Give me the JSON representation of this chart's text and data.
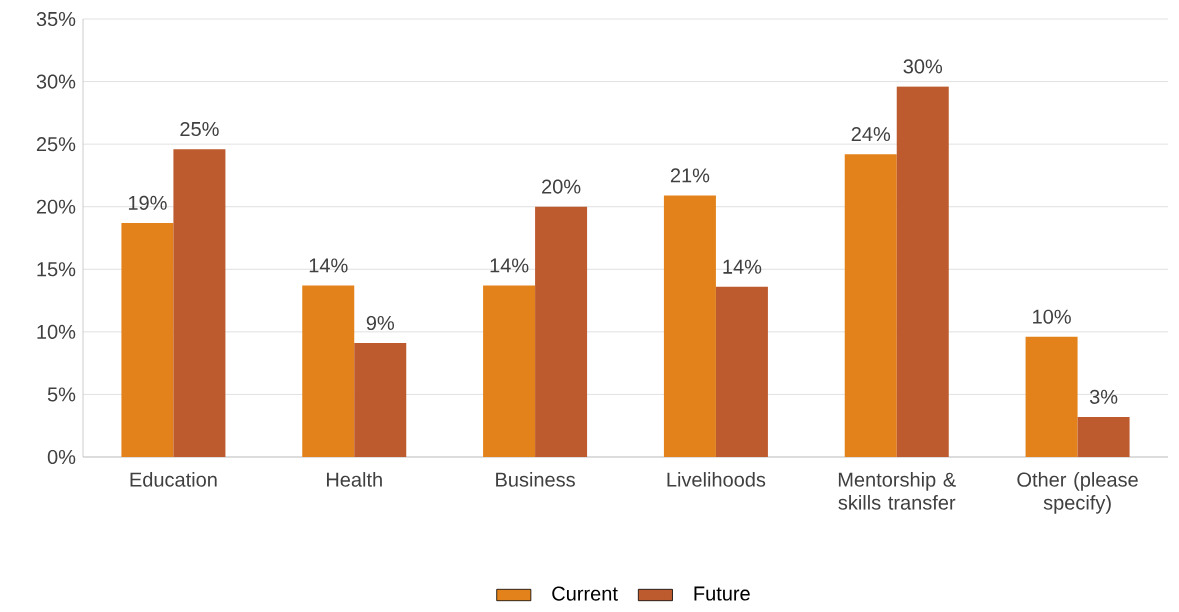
{
  "chart_data": {
    "type": "bar",
    "categories": [
      "Education",
      "Health",
      "Business",
      "Livelihoods",
      "Mentorship & skills transfer",
      "Other (please specify)"
    ],
    "series": [
      {
        "name": "Current",
        "color": "#e3821a",
        "values": [
          18.7,
          13.7,
          13.7,
          20.9,
          24.2,
          9.6
        ],
        "value_labels": [
          "19%",
          "14%",
          "14%",
          "21%",
          "24%",
          "10%"
        ]
      },
      {
        "name": "Future",
        "color": "#bd5a2e",
        "values": [
          24.6,
          9.1,
          20.0,
          13.6,
          29.6,
          3.2
        ],
        "value_labels": [
          "25%",
          "9%",
          "20%",
          "14%",
          "30%",
          "3%"
        ]
      }
    ],
    "ylim": [
      0,
      35
    ],
    "yticks": [
      {
        "value": 0,
        "label": "0%"
      },
      {
        "value": 5,
        "label": "5%"
      },
      {
        "value": 10,
        "label": "10%"
      },
      {
        "value": 15,
        "label": "15%"
      },
      {
        "value": 20,
        "label": "20%"
      },
      {
        "value": 25,
        "label": "25%"
      },
      {
        "value": 30,
        "label": "30%"
      },
      {
        "value": 35,
        "label": "35%"
      }
    ],
    "grid": "y",
    "legend": "bottom"
  }
}
